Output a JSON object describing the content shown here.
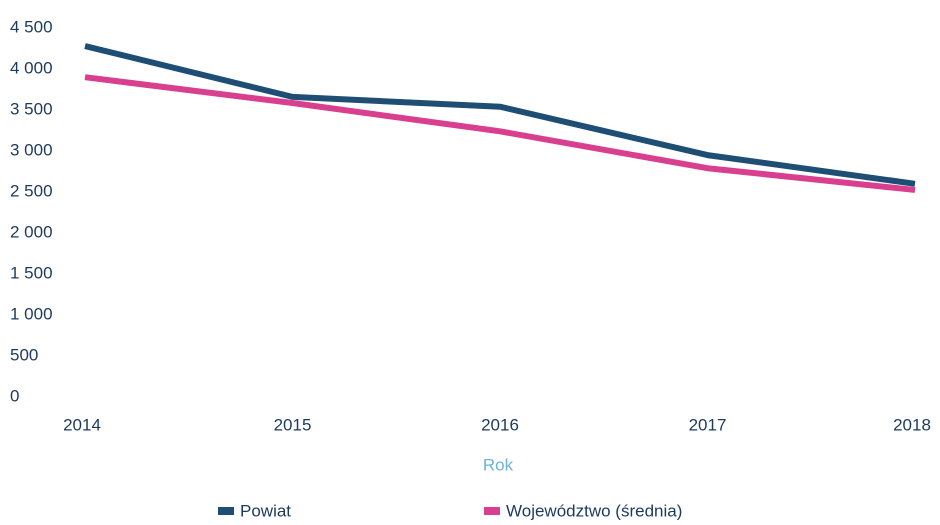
{
  "chart_data": {
    "type": "line",
    "categories": [
      "2014",
      "2015",
      "2016",
      "2017",
      "2018"
    ],
    "series": [
      {
        "name": "Powiat",
        "color": "#1f4e74",
        "values": [
          4280,
          3660,
          3540,
          2950,
          2600
        ]
      },
      {
        "name": "Województwo (średnia)",
        "color": "#d8408f",
        "values": [
          3900,
          3585,
          3240,
          2790,
          2525
        ]
      }
    ],
    "ylim": [
      0,
      4500
    ],
    "yticks": [
      0,
      500,
      {
        "value": 1000,
        "label": "1 000"
      },
      {
        "value": 1500,
        "label": "1 500"
      },
      {
        "value": 2000,
        "label": "2 000"
      },
      {
        "value": 2500,
        "label": "2 500"
      },
      {
        "value": 3000,
        "label": "3 000"
      },
      {
        "value": 3500,
        "label": "3 500"
      },
      {
        "value": 4000,
        "label": "4 000"
      },
      {
        "value": 4500,
        "label": "4 500"
      }
    ],
    "xlabel": "Rok",
    "grid": false,
    "legend": "bottom"
  }
}
